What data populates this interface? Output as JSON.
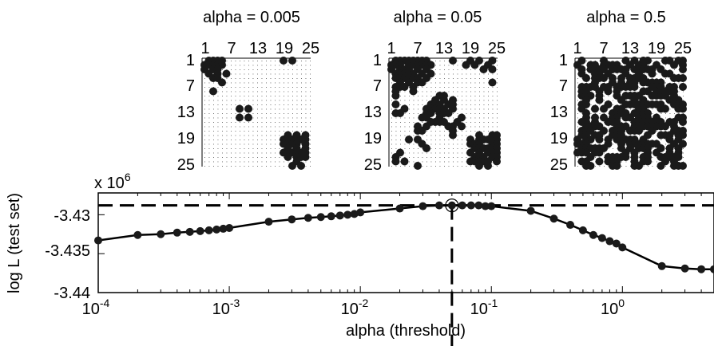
{
  "chart_data": [
    {
      "type": "scatter",
      "subtype": "adjacency-matrix",
      "title": "alpha = 0.005",
      "ticks": [
        "1",
        "7",
        "13",
        "19",
        "25"
      ],
      "size": 25,
      "cells": [
        [
          1,
          2
        ],
        [
          1,
          3
        ],
        [
          1,
          4
        ],
        [
          1,
          5
        ],
        [
          1,
          19
        ],
        [
          1,
          21
        ],
        [
          2,
          1
        ],
        [
          2,
          2
        ],
        [
          2,
          3
        ],
        [
          2,
          4
        ],
        [
          2,
          5
        ],
        [
          3,
          1
        ],
        [
          3,
          3
        ],
        [
          3,
          4
        ],
        [
          4,
          2
        ],
        [
          4,
          4
        ],
        [
          4,
          6
        ],
        [
          5,
          3
        ],
        [
          5,
          4
        ],
        [
          6,
          5
        ],
        [
          8,
          3
        ],
        [
          12,
          9
        ],
        [
          12,
          11
        ],
        [
          14,
          9
        ],
        [
          14,
          11
        ],
        [
          18,
          20
        ],
        [
          18,
          22
        ],
        [
          18,
          24
        ],
        [
          19,
          19
        ],
        [
          19,
          20
        ],
        [
          19,
          21
        ],
        [
          19,
          22
        ],
        [
          19,
          23
        ],
        [
          19,
          24
        ],
        [
          20,
          19
        ],
        [
          20,
          20
        ],
        [
          20,
          21
        ],
        [
          20,
          22
        ],
        [
          20,
          24
        ],
        [
          21,
          20
        ],
        [
          21,
          22
        ],
        [
          21,
          24
        ],
        [
          22,
          19
        ],
        [
          22,
          20
        ],
        [
          22,
          21
        ],
        [
          22,
          22
        ],
        [
          22,
          23
        ],
        [
          22,
          24
        ],
        [
          23,
          20
        ],
        [
          23,
          22
        ],
        [
          23,
          23
        ],
        [
          23,
          24
        ],
        [
          24,
          22
        ],
        [
          25,
          21
        ],
        [
          25,
          23
        ]
      ]
    },
    {
      "type": "scatter",
      "subtype": "adjacency-matrix",
      "title": "alpha = 0.05",
      "ticks": [
        "1",
        "7",
        "13",
        "19",
        "25"
      ],
      "size": 25,
      "cells": [
        [
          1,
          2
        ],
        [
          1,
          3
        ],
        [
          1,
          4
        ],
        [
          1,
          5
        ],
        [
          1,
          6
        ],
        [
          1,
          7
        ],
        [
          1,
          8
        ],
        [
          1,
          9
        ],
        [
          1,
          15
        ],
        [
          1,
          19
        ],
        [
          1,
          21
        ],
        [
          1,
          24
        ],
        [
          2,
          1
        ],
        [
          2,
          2
        ],
        [
          2,
          3
        ],
        [
          2,
          5
        ],
        [
          2,
          6
        ],
        [
          2,
          7
        ],
        [
          2,
          8
        ],
        [
          2,
          9
        ],
        [
          2,
          10
        ],
        [
          2,
          18
        ],
        [
          2,
          20
        ],
        [
          2,
          23
        ],
        [
          3,
          1
        ],
        [
          3,
          3
        ],
        [
          3,
          4
        ],
        [
          3,
          5
        ],
        [
          3,
          7
        ],
        [
          3,
          9
        ],
        [
          3,
          22
        ],
        [
          3,
          24
        ],
        [
          4,
          2
        ],
        [
          4,
          3
        ],
        [
          4,
          4
        ],
        [
          4,
          5
        ],
        [
          4,
          6
        ],
        [
          4,
          8
        ],
        [
          4,
          10
        ],
        [
          5,
          2
        ],
        [
          5,
          3
        ],
        [
          5,
          4
        ],
        [
          5,
          5
        ],
        [
          5,
          6
        ],
        [
          5,
          7
        ],
        [
          5,
          9
        ],
        [
          6,
          3
        ],
        [
          6,
          5
        ],
        [
          6,
          7
        ],
        [
          6,
          8
        ],
        [
          6,
          24
        ],
        [
          7,
          2
        ],
        [
          7,
          3
        ],
        [
          7,
          4
        ],
        [
          7,
          6
        ],
        [
          8,
          2
        ],
        [
          8,
          6
        ],
        [
          9,
          2
        ],
        [
          9,
          12
        ],
        [
          9,
          13
        ],
        [
          10,
          11
        ],
        [
          10,
          13
        ],
        [
          10,
          15
        ],
        [
          11,
          2
        ],
        [
          11,
          10
        ],
        [
          11,
          11
        ],
        [
          11,
          12
        ],
        [
          11,
          14
        ],
        [
          11,
          15
        ],
        [
          12,
          4
        ],
        [
          12,
          9
        ],
        [
          12,
          10
        ],
        [
          12,
          11
        ],
        [
          12,
          12
        ],
        [
          12,
          13
        ],
        [
          12,
          15
        ],
        [
          13,
          2
        ],
        [
          13,
          3
        ],
        [
          13,
          9
        ],
        [
          13,
          10
        ],
        [
          13,
          12
        ],
        [
          13,
          13
        ],
        [
          13,
          14
        ],
        [
          14,
          8
        ],
        [
          14,
          9
        ],
        [
          14,
          12
        ],
        [
          14,
          17
        ],
        [
          15,
          10
        ],
        [
          15,
          11
        ],
        [
          15,
          12
        ],
        [
          15,
          13
        ],
        [
          15,
          16
        ],
        [
          16,
          7
        ],
        [
          16,
          9
        ],
        [
          16,
          14
        ],
        [
          16,
          15
        ],
        [
          16,
          17
        ],
        [
          17,
          7
        ],
        [
          17,
          8
        ],
        [
          17,
          15
        ],
        [
          18,
          15
        ],
        [
          18,
          21
        ],
        [
          18,
          24
        ],
        [
          18,
          25
        ],
        [
          19,
          5
        ],
        [
          19,
          7
        ],
        [
          19,
          19
        ],
        [
          19,
          21
        ],
        [
          19,
          22
        ],
        [
          19,
          23
        ],
        [
          19,
          24
        ],
        [
          19,
          25
        ],
        [
          20,
          8
        ],
        [
          20,
          19
        ],
        [
          20,
          20
        ],
        [
          20,
          21
        ],
        [
          20,
          24
        ],
        [
          20,
          25
        ],
        [
          21,
          9
        ],
        [
          21,
          20
        ],
        [
          21,
          21
        ],
        [
          21,
          22
        ],
        [
          21,
          23
        ],
        [
          21,
          24
        ],
        [
          21,
          25
        ],
        [
          22,
          3
        ],
        [
          22,
          19
        ],
        [
          22,
          21
        ],
        [
          22,
          23
        ],
        [
          22,
          24
        ],
        [
          22,
          25
        ],
        [
          23,
          2
        ],
        [
          23,
          20
        ],
        [
          23,
          21
        ],
        [
          23,
          22
        ],
        [
          23,
          24
        ],
        [
          23,
          25
        ],
        [
          24,
          2
        ],
        [
          24,
          4
        ],
        [
          24,
          19
        ],
        [
          24,
          20
        ],
        [
          24,
          21
        ],
        [
          24,
          22
        ],
        [
          24,
          23
        ],
        [
          24,
          25
        ],
        [
          25,
          7
        ],
        [
          25,
          21
        ],
        [
          25,
          23
        ]
      ]
    },
    {
      "type": "scatter",
      "subtype": "adjacency-matrix",
      "title": "alpha = 0.5",
      "ticks": [
        "1",
        "7",
        "13",
        "19",
        "25"
      ],
      "size": 25,
      "density": 0.5
    },
    {
      "type": "line",
      "title": "",
      "xlabel": "alpha (threshold)",
      "ylabel": "log L (test set)",
      "xscale": "log",
      "xlim": [
        0.0001,
        5
      ],
      "ylim": [
        -3.44,
        -3.4272
      ],
      "y_multiplier": "x 10^6",
      "y_multiplier_base": "x 10",
      "y_multiplier_exp": "6",
      "yticks": [
        "-3.43",
        "-3.435",
        "-3.44"
      ],
      "xtick_bases": [
        "10",
        "10",
        "10",
        "10",
        "10"
      ],
      "xtick_exps": [
        "-4",
        "-3",
        "-2",
        "-1",
        "0"
      ],
      "best_alpha": 0.05,
      "best_value": -3.4288,
      "x": [
        0.0001,
        0.0002,
        0.0003,
        0.0004,
        0.0005,
        0.0006,
        0.0007,
        0.0008,
        0.0009,
        0.001,
        0.002,
        0.003,
        0.004,
        0.005,
        0.006,
        0.007,
        0.008,
        0.009,
        0.01,
        0.02,
        0.03,
        0.04,
        0.05,
        0.06,
        0.07,
        0.08,
        0.09,
        0.1,
        0.2,
        0.3,
        0.4,
        0.5,
        0.6,
        0.7,
        0.8,
        0.9,
        1.0,
        2.0,
        3.0,
        4.0,
        5.0
      ],
      "series": [
        {
          "values": [
            -3.4333,
            -3.4326,
            -3.4325,
            -3.4323,
            -3.4322,
            -3.4321,
            -3.432,
            -3.4319,
            -3.4318,
            -3.4317,
            -3.4309,
            -3.4306,
            -3.4304,
            -3.4303,
            -3.4302,
            -3.4301,
            -3.43,
            -3.4299,
            -3.4297,
            -3.4292,
            -3.4289,
            -3.4288,
            -3.4288,
            -3.4288,
            -3.4288,
            -3.4288,
            -3.4289,
            -3.4289,
            -3.4295,
            -3.4305,
            -3.4313,
            -3.432,
            -3.4326,
            -3.433,
            -3.4334,
            -3.4337,
            -3.4342,
            -3.4366,
            -3.4369,
            -3.437,
            -3.437
          ]
        }
      ]
    }
  ]
}
